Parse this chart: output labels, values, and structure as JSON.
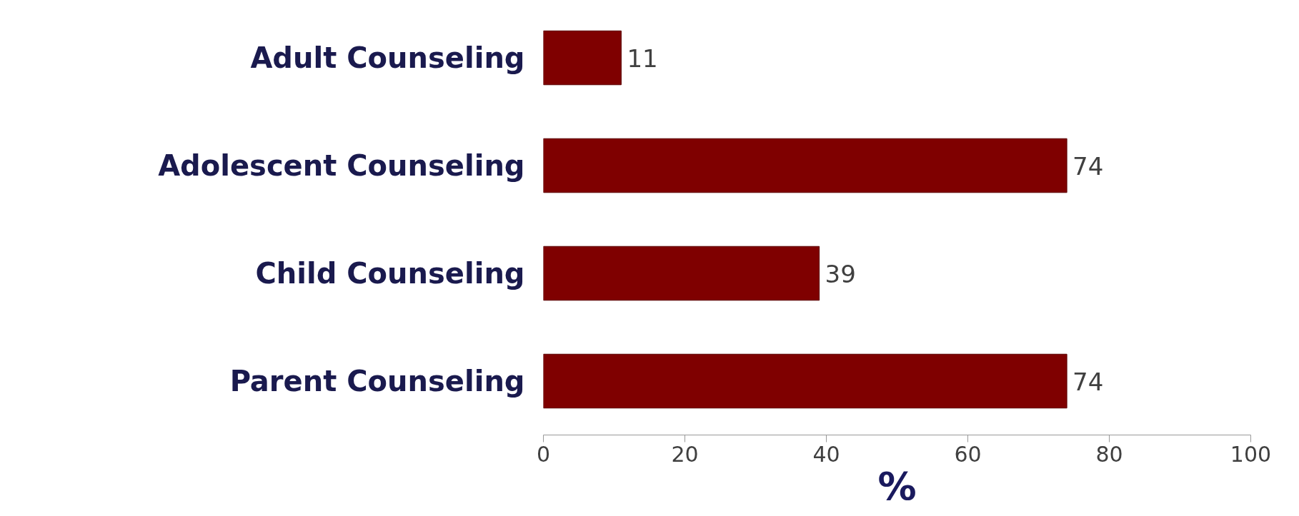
{
  "chart_data": {
    "type": "bar",
    "orientation": "horizontal",
    "categories": [
      "Adult Counseling",
      "Adolescent Counseling",
      "Child Counseling",
      "Parent Counseling"
    ],
    "values": [
      11,
      74,
      39,
      74
    ],
    "color": "#7f0000",
    "data_labels": true,
    "xlim": [
      0,
      100
    ],
    "xticks": [
      0,
      20,
      40,
      60,
      80,
      100
    ],
    "xlabel": "%",
    "grid": false
  }
}
